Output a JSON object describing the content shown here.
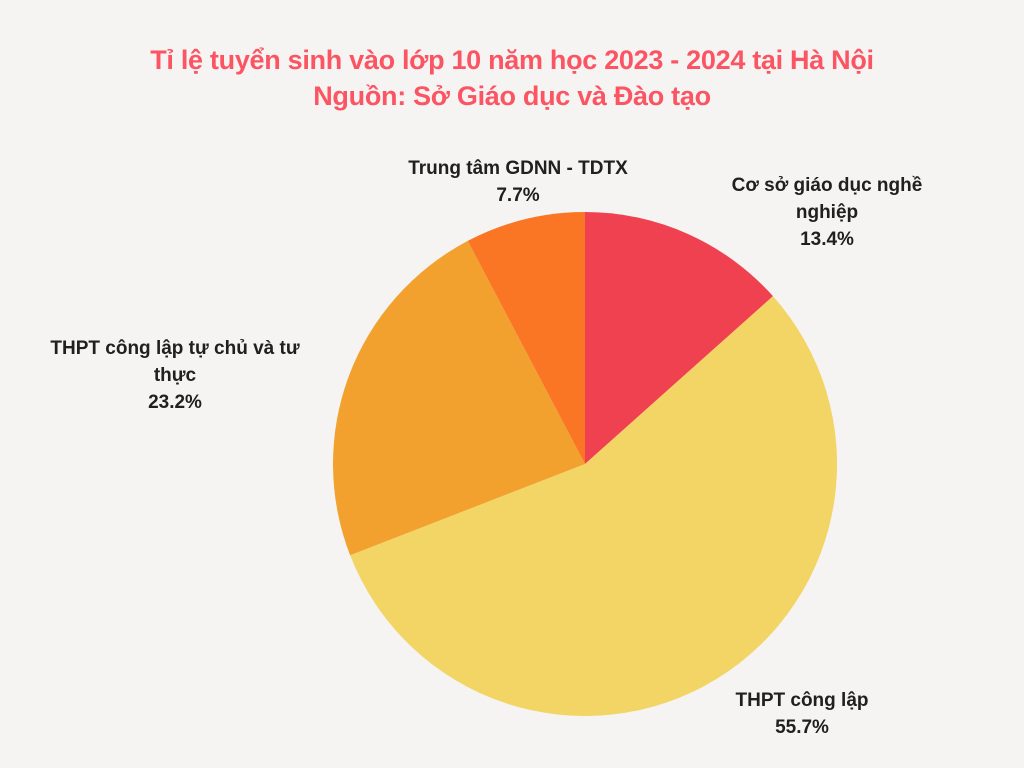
{
  "title": {
    "line1": "Tỉ lệ tuyển sinh vào lớp 10 năm học 2023 - 2024 tại Hà Nội",
    "line2": "Nguồn: Sở Giáo dục và Đào tạo"
  },
  "colors": {
    "background": "#f5f4f2",
    "title_text": "#fb5463",
    "label_text": "#202020"
  },
  "chart_data": {
    "type": "pie",
    "title": "Tỉ lệ tuyển sinh vào lớp 10 năm học 2023 - 2024 tại Hà Nội",
    "subtitle": "Nguồn: Sở Giáo dục và Đào tạo",
    "start_angle_deg": 0,
    "direction": "clockwise",
    "labels_position": "outside",
    "legend": "none",
    "slices": [
      {
        "label": "Cơ sở giáo dục nghề nghiệp",
        "value": 13.4,
        "pct_label": "13.4%",
        "color": "#ef414f"
      },
      {
        "label": "THPT công lập",
        "value": 55.7,
        "pct_label": "55.7%",
        "color": "#f2d564"
      },
      {
        "label": "THPT công lập tự chủ và tư thực",
        "value": 23.2,
        "pct_label": "23.2%",
        "color": "#f2a12f"
      },
      {
        "label": "Trung tâm GDNN - TDTX",
        "value": 7.7,
        "pct_label": "7.7%",
        "color": "#fb7624"
      }
    ]
  }
}
